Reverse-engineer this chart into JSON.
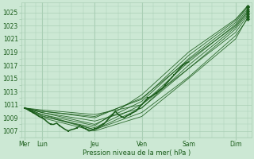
{
  "xlabel": "Pression niveau de la mer( hPa )",
  "background_color": "#cce8d4",
  "grid_color": "#aacfb5",
  "line_color": "#1a5c1a",
  "tick_label_color": "#1a5c1a",
  "ylim": [
    1006.0,
    1026.5
  ],
  "yticks": [
    1007,
    1009,
    1011,
    1013,
    1015,
    1017,
    1019,
    1021,
    1023,
    1025
  ],
  "day_labels": [
    "Mer",
    "Lun",
    "Jeu",
    "Ven",
    "Sam",
    "Dim"
  ],
  "day_x": [
    0,
    18,
    72,
    120,
    168,
    216
  ],
  "xlim": [
    -3,
    232
  ],
  "total_hours": 228,
  "series": [
    {
      "x": [
        0,
        18,
        72,
        120,
        168,
        216,
        228
      ],
      "y": [
        1010.5,
        1009.5,
        1007.2,
        1010.5,
        1016.5,
        1022.5,
        1024.8
      ]
    },
    {
      "x": [
        0,
        18,
        72,
        120,
        168,
        216,
        228
      ],
      "y": [
        1010.5,
        1009.0,
        1007.0,
        1009.2,
        1015.0,
        1021.0,
        1024.2
      ]
    },
    {
      "x": [
        0,
        18,
        72,
        120,
        168,
        216,
        228
      ],
      "y": [
        1010.5,
        1009.2,
        1007.5,
        1011.0,
        1017.5,
        1023.2,
        1025.5
      ]
    },
    {
      "x": [
        0,
        18,
        72,
        120,
        168,
        216,
        228
      ],
      "y": [
        1010.5,
        1009.8,
        1008.0,
        1011.5,
        1018.0,
        1023.5,
        1025.8
      ]
    },
    {
      "x": [
        0,
        18,
        72,
        120,
        168,
        216,
        228
      ],
      "y": [
        1010.5,
        1009.5,
        1007.8,
        1012.5,
        1019.0,
        1024.0,
        1026.0
      ]
    },
    {
      "x": [
        0,
        18,
        72,
        120,
        168,
        216,
        228
      ],
      "y": [
        1010.5,
        1010.0,
        1009.0,
        1012.0,
        1017.8,
        1023.0,
        1025.2
      ]
    },
    {
      "x": [
        0,
        18,
        72,
        120,
        168,
        216,
        228
      ],
      "y": [
        1010.5,
        1010.2,
        1009.5,
        1011.0,
        1016.5,
        1022.0,
        1024.5
      ]
    },
    {
      "x": [
        0,
        18,
        72,
        120,
        168,
        216,
        228
      ],
      "y": [
        1010.5,
        1009.3,
        1007.2,
        1009.8,
        1015.2,
        1021.5,
        1024.0
      ]
    },
    {
      "x": [
        0,
        18,
        72,
        120,
        168,
        216,
        228
      ],
      "y": [
        1010.5,
        1009.8,
        1008.5,
        1010.5,
        1017.0,
        1022.8,
        1025.0
      ]
    },
    {
      "x": [
        0,
        18,
        72,
        120,
        168,
        216,
        228
      ],
      "y": [
        1010.5,
        1010.0,
        1009.2,
        1011.8,
        1018.5,
        1023.8,
        1025.9
      ]
    }
  ],
  "obs_x": [
    0,
    3,
    6,
    9,
    12,
    15,
    18,
    21,
    24,
    27,
    30,
    33,
    36,
    39,
    42,
    45,
    48,
    51,
    54,
    57,
    60,
    63,
    66,
    69,
    72,
    75,
    78,
    81,
    84,
    87,
    90,
    93,
    96,
    99,
    102,
    105,
    108,
    111,
    114,
    117,
    120,
    123,
    126,
    129,
    132,
    135,
    138,
    141,
    144,
    147,
    150,
    153,
    156,
    159,
    162,
    165,
    168
  ],
  "obs_y": [
    1010.5,
    1010.3,
    1010.0,
    1009.8,
    1009.5,
    1009.2,
    1009.0,
    1008.7,
    1008.3,
    1008.0,
    1008.0,
    1008.2,
    1007.8,
    1007.5,
    1007.2,
    1007.0,
    1007.2,
    1007.3,
    1007.5,
    1007.8,
    1007.5,
    1007.3,
    1007.0,
    1007.1,
    1007.3,
    1007.5,
    1007.8,
    1008.0,
    1008.5,
    1009.0,
    1009.5,
    1010.0,
    1009.5,
    1009.2,
    1009.0,
    1009.3,
    1009.5,
    1009.8,
    1010.0,
    1010.5,
    1011.0,
    1011.5,
    1012.0,
    1012.2,
    1012.5,
    1012.8,
    1013.2,
    1013.5,
    1014.0,
    1014.5,
    1015.0,
    1015.5,
    1016.0,
    1016.5,
    1017.0,
    1017.3,
    1017.5
  ]
}
